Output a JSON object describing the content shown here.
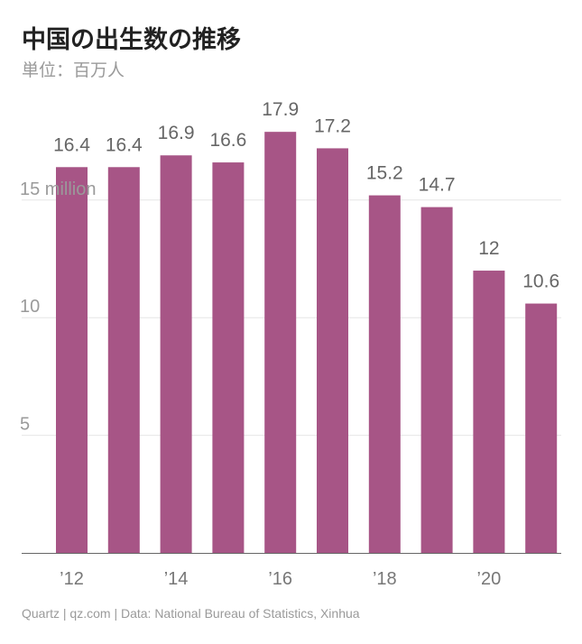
{
  "header": {
    "title": "中国の出生数の推移",
    "subtitle": "単位：百万人"
  },
  "footer": {
    "source": "Quartz | qz.com | Data: National Bureau of Statistics, Xinhua"
  },
  "chart_data": {
    "type": "bar",
    "title": "中国の出生数の推移",
    "subtitle": "単位：百万人",
    "color": "#a75586",
    "categories": [
      "2012",
      "2013",
      "2014",
      "2015",
      "2016",
      "2017",
      "2018",
      "2019",
      "2020",
      "2021"
    ],
    "values": [
      16.4,
      16.4,
      16.9,
      16.6,
      17.9,
      17.2,
      15.2,
      14.7,
      12,
      10.6
    ],
    "data_labels": [
      "16.4",
      "16.4",
      "16.9",
      "16.6",
      "17.9",
      "17.2",
      "15.2",
      "14.7",
      "12",
      "10.6"
    ],
    "x_tick_labels": [
      "’12",
      "",
      "’14",
      "",
      "’16",
      "",
      "’18",
      "",
      "’20",
      ""
    ],
    "y_ticks": [
      5,
      10,
      15
    ],
    "y_tick_labels": [
      "5",
      "10",
      "15 million"
    ],
    "ylim": [
      0,
      18.5
    ],
    "grid": true,
    "legend": "none"
  }
}
